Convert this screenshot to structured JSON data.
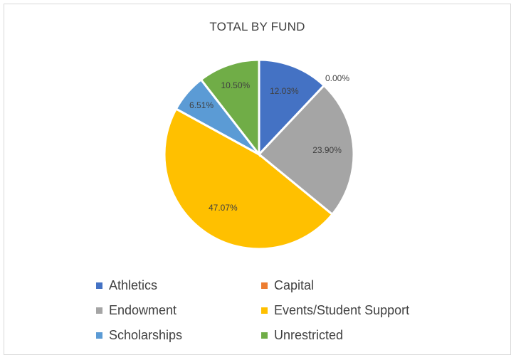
{
  "chart_data": {
    "type": "pie",
    "title": "TOTAL BY FUND",
    "categories": [
      "Athletics",
      "Capital",
      "Endowment",
      "Events/Student Support",
      "Scholarships",
      "Unrestricted"
    ],
    "values": [
      12.03,
      0.0,
      23.9,
      47.07,
      6.51,
      10.5
    ],
    "data_labels": [
      "12.03%",
      "0.00%",
      "23.90%",
      "47.07%",
      "6.51%",
      "10.50%"
    ],
    "colors": [
      "#4472c4",
      "#ed7d31",
      "#a5a5a5",
      "#ffc000",
      "#5b9bd5",
      "#70ad47"
    ],
    "legend_position": "bottom"
  }
}
